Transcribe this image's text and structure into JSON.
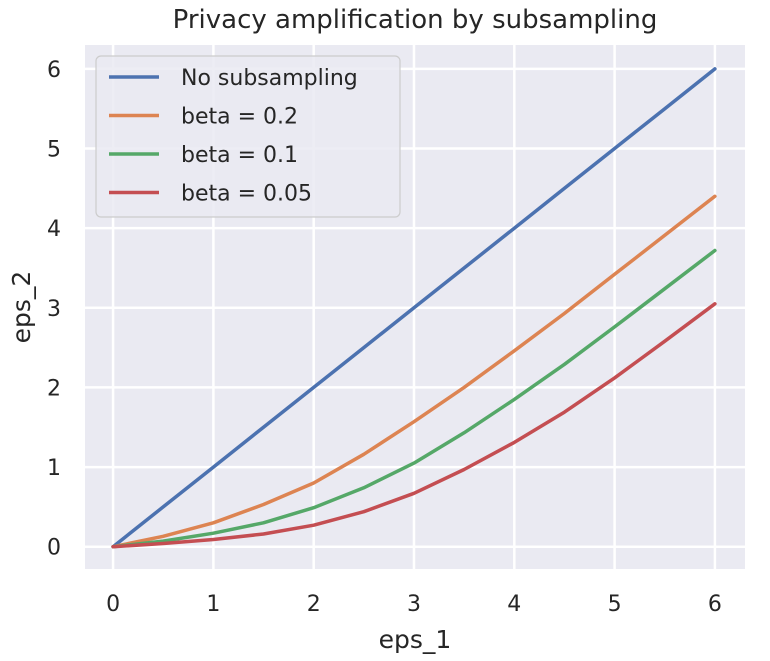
{
  "chart_data": {
    "type": "line",
    "title": "Privacy amplification by subsampling",
    "xlabel": "eps_1",
    "ylabel": "eps_2",
    "xlim": [
      -0.28,
      6.3
    ],
    "ylim": [
      -0.28,
      6.3
    ],
    "xticks": [
      0,
      1,
      2,
      3,
      4,
      5,
      6
    ],
    "yticks": [
      0,
      1,
      2,
      3,
      4,
      5,
      6
    ],
    "grid": true,
    "legend_position": "top-left",
    "x": [
      0,
      0.5,
      1,
      1.5,
      2,
      2.5,
      3,
      3.5,
      4,
      4.5,
      5,
      5.5,
      6
    ],
    "series": [
      {
        "name": "No subsampling",
        "color": "#4c72b0",
        "values": [
          0,
          0.5,
          1,
          1.5,
          2,
          2.5,
          3,
          3.5,
          4,
          4.5,
          5,
          5.5,
          6
        ]
      },
      {
        "name": "beta = 0.2",
        "color": "#dd8452",
        "values": [
          0,
          0.13,
          0.3,
          0.53,
          0.8,
          1.16,
          1.57,
          2.0,
          2.46,
          2.93,
          3.42,
          3.91,
          4.4
        ]
      },
      {
        "name": "beta = 0.1",
        "color": "#55a868",
        "values": [
          0,
          0.07,
          0.17,
          0.3,
          0.49,
          0.74,
          1.05,
          1.43,
          1.85,
          2.29,
          2.76,
          3.24,
          3.72
        ]
      },
      {
        "name": "beta = 0.05",
        "color": "#c44e52",
        "values": [
          0,
          0.04,
          0.09,
          0.16,
          0.27,
          0.44,
          0.67,
          0.97,
          1.31,
          1.69,
          2.12,
          2.58,
          3.05
        ]
      }
    ]
  }
}
